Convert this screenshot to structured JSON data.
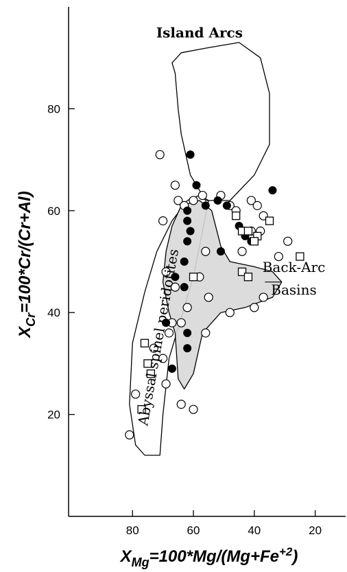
{
  "chart_data": {
    "type": "scatter",
    "title": "",
    "xlabel": {
      "main": "X",
      "sub": "Mg",
      "rest": "=100*Mg/(Mg+Fe",
      "sup": "+2",
      "end": ")"
    },
    "ylabel": {
      "main": "X",
      "sub": "Cr",
      "rest": "=100*Cr/(Cr+Al)"
    },
    "xlim": [
      101,
      10
    ],
    "ylim": [
      0,
      100
    ],
    "x_reversed": true,
    "x_ticks": [
      80,
      60,
      40,
      20
    ],
    "y_ticks": [
      20,
      40,
      60,
      80
    ],
    "grid": false,
    "legend": "none",
    "annotations": [
      {
        "text": "Island Arcs",
        "x": 58,
        "y": 94
      },
      {
        "text": "Back-Arc",
        "x": 27,
        "y": 48
      },
      {
        "text": "Basins",
        "x": 27,
        "y": 43.5
      },
      {
        "text": "Abyssal spinel peridotites",
        "x": 70,
        "y": 35,
        "rotation": -80
      }
    ],
    "regions": [
      {
        "name": "Island Arcs",
        "fill": "none",
        "points": [
          [
            66,
            87
          ],
          [
            65,
            80
          ],
          [
            64,
            75
          ],
          [
            61,
            67
          ],
          [
            56,
            62
          ],
          [
            48,
            62
          ],
          [
            40,
            67
          ],
          [
            35,
            73
          ],
          [
            35,
            83
          ],
          [
            38,
            90
          ],
          [
            45,
            93
          ],
          [
            55,
            92
          ],
          [
            64,
            91
          ],
          [
            67,
            89
          ]
        ]
      },
      {
        "name": "Abyssal spinel peridotites",
        "fill": "none",
        "points": [
          [
            79,
            14
          ],
          [
            76,
            12
          ],
          [
            71,
            12
          ],
          [
            70,
            20
          ],
          [
            68,
            31
          ],
          [
            64,
            39
          ],
          [
            60,
            47
          ],
          [
            57,
            56
          ],
          [
            55,
            62
          ],
          [
            58,
            63
          ],
          [
            62,
            62
          ],
          [
            67,
            58
          ],
          [
            72,
            52
          ],
          [
            76,
            44
          ],
          [
            80,
            34
          ],
          [
            81,
            22
          ]
        ]
      },
      {
        "name": "Back-Arc Basins",
        "fill": "#d8d8d8",
        "points": [
          [
            70,
            46
          ],
          [
            69,
            52
          ],
          [
            67,
            57
          ],
          [
            64,
            61
          ],
          [
            58,
            62
          ],
          [
            54,
            60
          ],
          [
            51,
            53
          ],
          [
            48,
            50
          ],
          [
            40,
            49
          ],
          [
            34,
            48
          ],
          [
            31,
            46
          ],
          [
            34,
            43
          ],
          [
            43,
            41
          ],
          [
            51,
            40
          ],
          [
            57,
            36
          ],
          [
            60,
            28
          ],
          [
            63,
            25
          ],
          [
            65,
            27
          ],
          [
            66,
            36
          ],
          [
            68,
            40
          ]
        ]
      }
    ],
    "series": [
      {
        "marker": "open-circle",
        "points": [
          [
            71,
            71
          ],
          [
            66,
            65
          ],
          [
            70,
            58
          ],
          [
            65,
            62
          ],
          [
            63,
            61
          ],
          [
            60,
            62
          ],
          [
            57,
            63
          ],
          [
            51,
            63
          ],
          [
            48,
            61
          ],
          [
            46,
            60
          ],
          [
            41,
            62
          ],
          [
            39,
            61
          ],
          [
            37,
            59
          ],
          [
            38,
            56
          ],
          [
            41,
            56
          ],
          [
            29,
            54
          ],
          [
            32,
            51
          ],
          [
            44,
            52
          ],
          [
            56,
            52
          ],
          [
            69,
            48
          ],
          [
            66,
            45
          ],
          [
            58,
            47
          ],
          [
            55,
            43
          ],
          [
            48,
            40
          ],
          [
            40,
            41
          ],
          [
            37,
            43
          ],
          [
            62,
            41
          ],
          [
            67,
            38
          ],
          [
            64,
            38
          ],
          [
            56,
            36
          ],
          [
            68,
            36
          ],
          [
            70,
            31
          ],
          [
            73,
            33
          ],
          [
            69,
            26
          ],
          [
            79,
            24
          ],
          [
            81,
            16
          ],
          [
            64,
            22
          ],
          [
            60,
            21
          ]
        ]
      },
      {
        "marker": "filled-circle",
        "points": [
          [
            61,
            71
          ],
          [
            59,
            65
          ],
          [
            56,
            61
          ],
          [
            52,
            62
          ],
          [
            49,
            61
          ],
          [
            62,
            60
          ],
          [
            62,
            58
          ],
          [
            61,
            56
          ],
          [
            62,
            54
          ],
          [
            51,
            52
          ],
          [
            43,
            55
          ],
          [
            45,
            57
          ],
          [
            41,
            54
          ],
          [
            34,
            64
          ],
          [
            63,
            50
          ],
          [
            66,
            47
          ],
          [
            63,
            45
          ],
          [
            69,
            38
          ],
          [
            62,
            36
          ],
          [
            62,
            33
          ],
          [
            67,
            29
          ]
        ]
      },
      {
        "marker": "open-square",
        "points": [
          [
            46,
            59
          ],
          [
            44,
            56
          ],
          [
            42,
            56
          ],
          [
            39,
            55
          ],
          [
            35,
            58
          ],
          [
            40,
            54
          ],
          [
            44,
            48
          ],
          [
            42,
            47
          ],
          [
            25,
            51
          ],
          [
            60,
            47
          ],
          [
            76,
            34
          ],
          [
            75,
            30
          ],
          [
            74,
            28
          ],
          [
            77,
            21
          ]
        ]
      }
    ]
  }
}
